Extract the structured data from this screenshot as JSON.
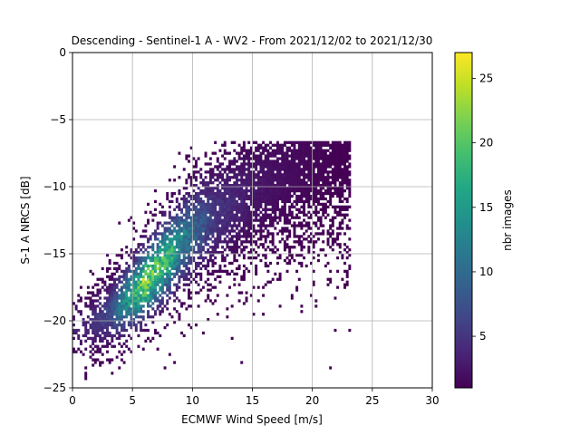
{
  "chart_data": {
    "type": "heatmap",
    "title": "Descending - Sentinel-1 A - WV2 - From 2021/12/02 to 2021/12/30",
    "xlabel": "ECMWF Wind Speed [m/s]",
    "ylabel": "S-1 A NRCS [dB]",
    "xlim": [
      0,
      30
    ],
    "ylim": [
      -25,
      0
    ],
    "xticks": [
      0,
      5,
      10,
      15,
      20,
      25,
      30
    ],
    "yticks": [
      0,
      -5,
      -10,
      -15,
      -20,
      -25
    ],
    "grid": true,
    "colormap": "viridis",
    "colorbar": {
      "label": "nbr images",
      "range": [
        1,
        27
      ],
      "ticks": [
        5,
        10,
        15,
        20,
        25
      ]
    },
    "density_ridge": [
      {
        "x": 1,
        "y": -20.5,
        "max_count": 4
      },
      {
        "x": 3,
        "y": -19.5,
        "max_count": 8
      },
      {
        "x": 5,
        "y": -18.0,
        "max_count": 20
      },
      {
        "x": 6,
        "y": -17.2,
        "max_count": 27
      },
      {
        "x": 7,
        "y": -16.2,
        "max_count": 25
      },
      {
        "x": 8,
        "y": -15.2,
        "max_count": 22
      },
      {
        "x": 9,
        "y": -14.2,
        "max_count": 16
      },
      {
        "x": 10,
        "y": -13.3,
        "max_count": 12
      },
      {
        "x": 12,
        "y": -12.0,
        "max_count": 6
      },
      {
        "x": 15,
        "y": -10.5,
        "max_count": 3
      },
      {
        "x": 18,
        "y": -9.0,
        "max_count": 2
      },
      {
        "x": 22,
        "y": -7.5,
        "max_count": 1
      }
    ],
    "x_range_of_data": [
      0,
      23
    ],
    "y_range_of_data": [
      -25,
      -6.7
    ]
  }
}
